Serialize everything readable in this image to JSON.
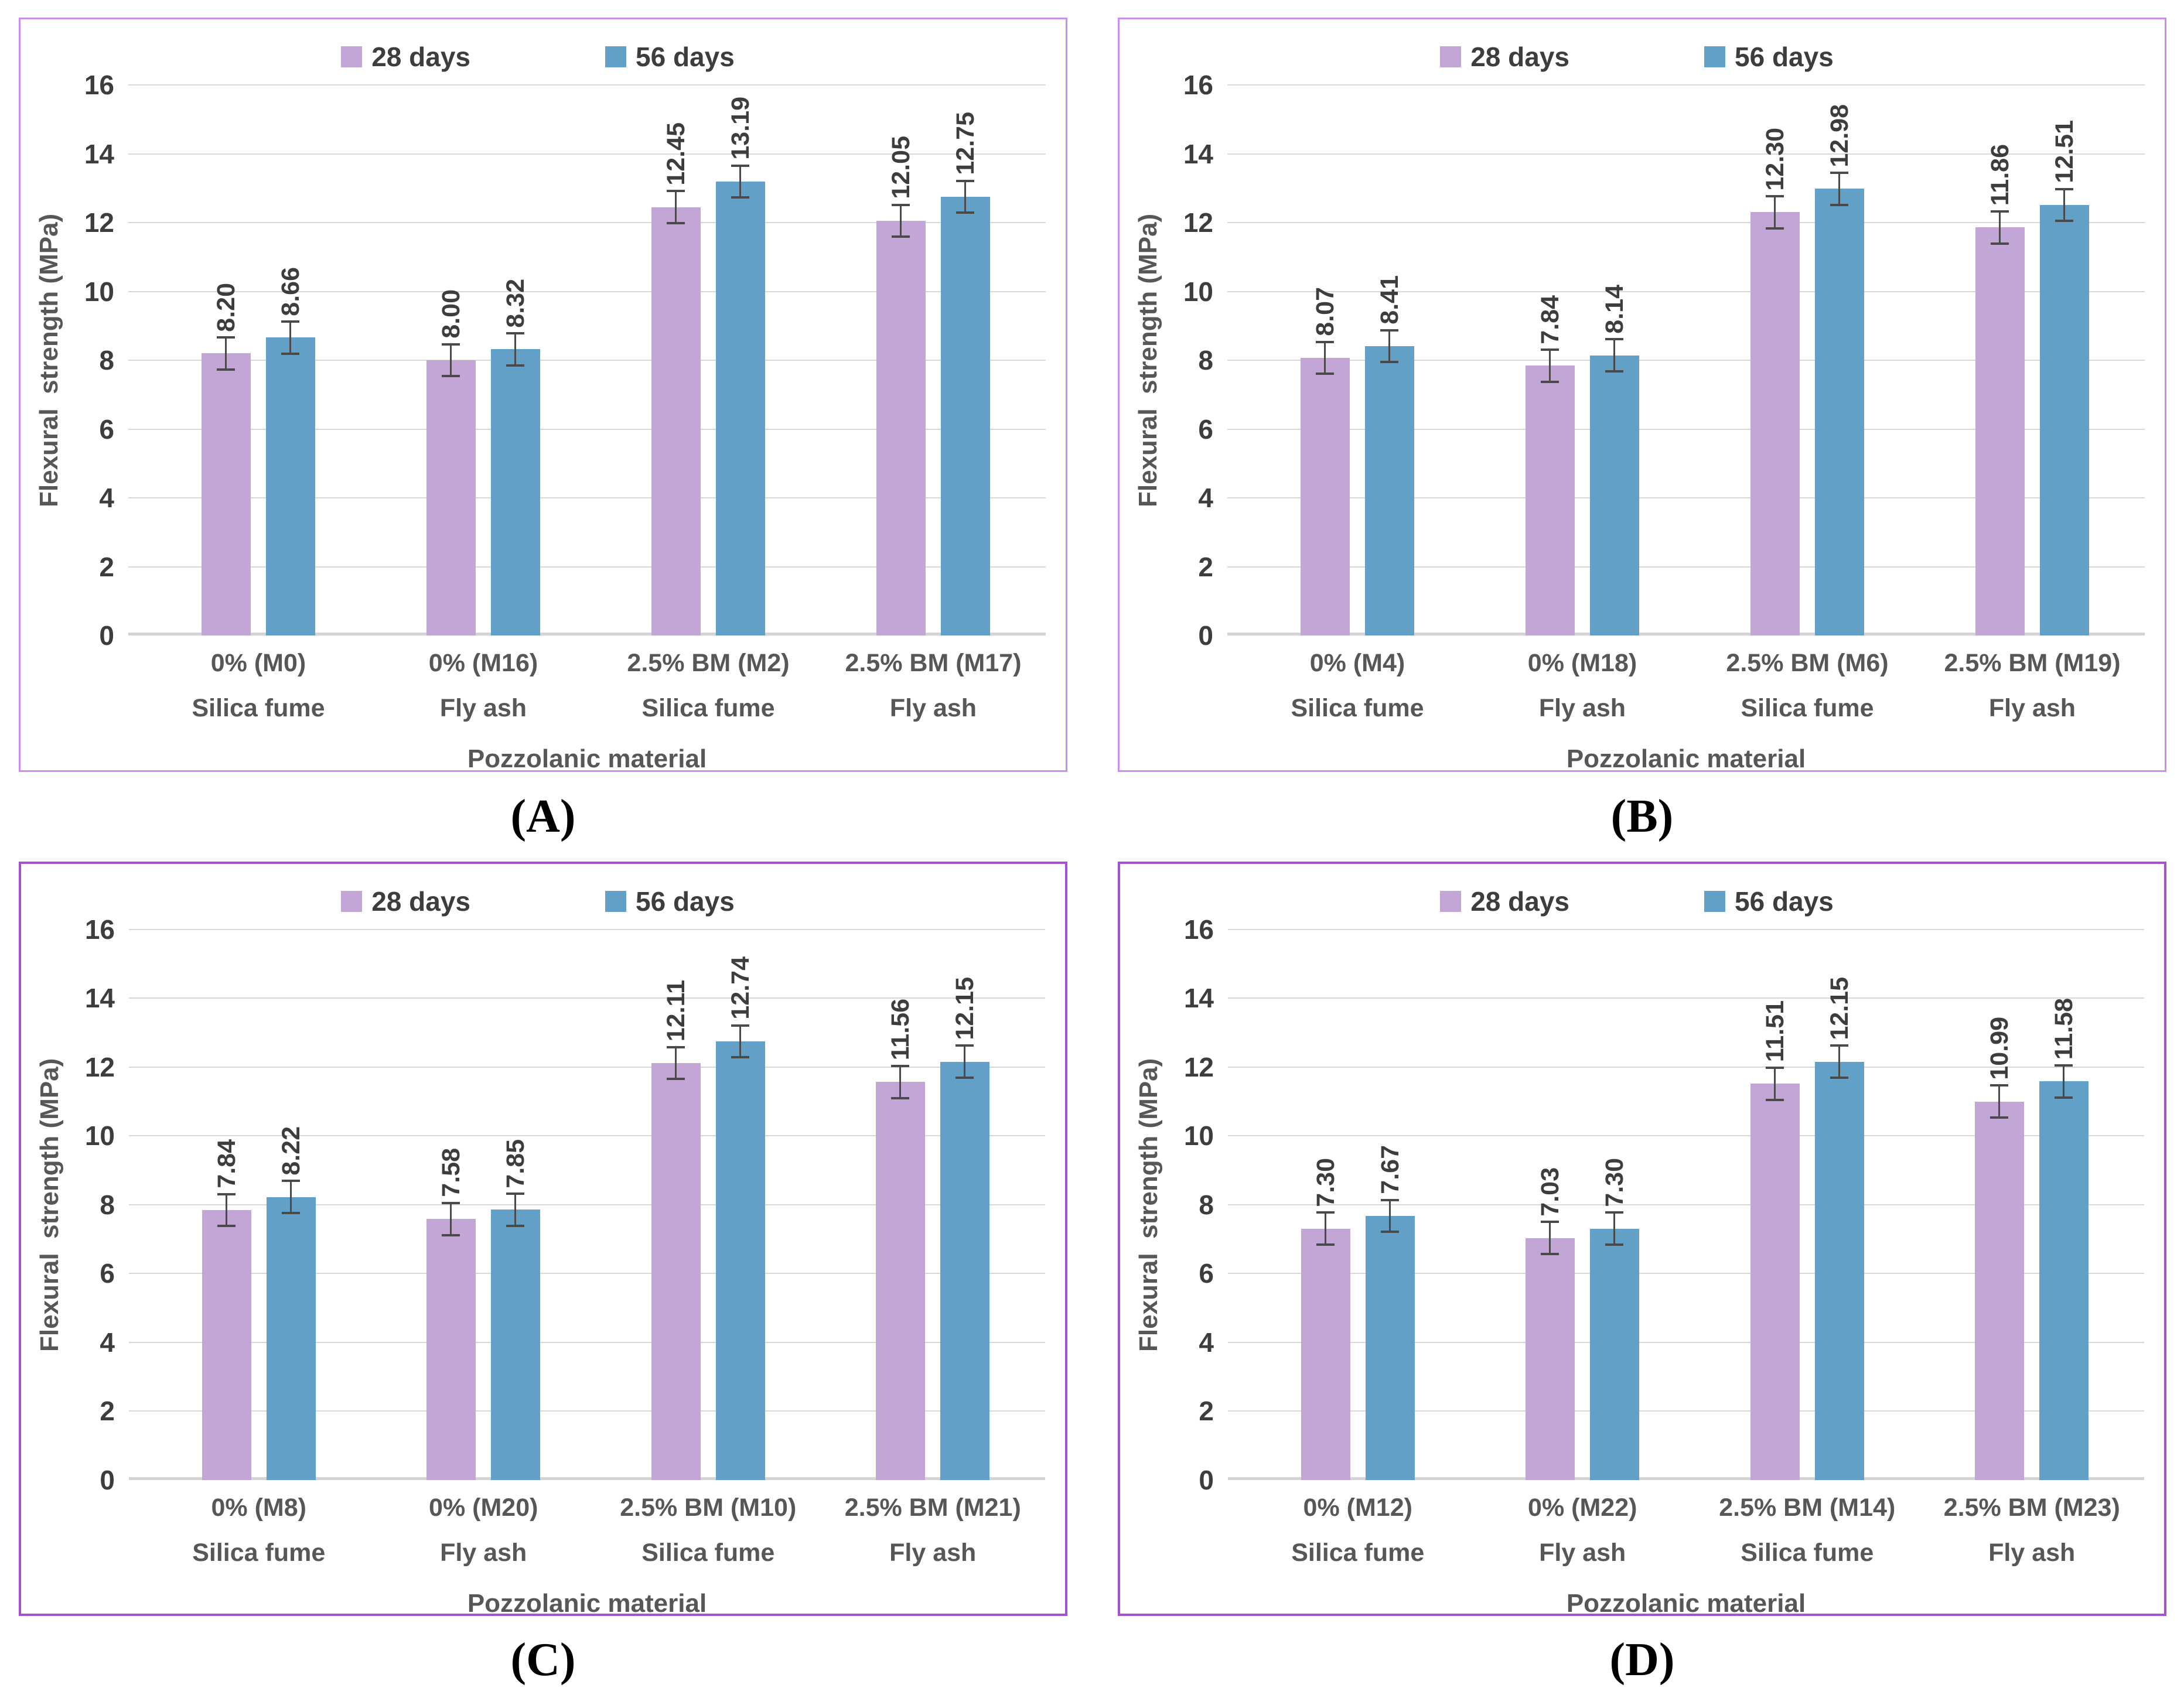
{
  "captions": [
    "(A)",
    "(B)",
    "(C)",
    "(D)"
  ],
  "legend": {
    "labels": [
      "28 days",
      "56 days"
    ]
  },
  "style": {
    "series_colors": [
      "#c2a6d6",
      "#63a0c7"
    ],
    "panel_border_rows": [
      "row1",
      "row1",
      "row2",
      "row2"
    ],
    "gridline_color": "#d8d8d8",
    "error_bar_color": "#4a4a4a"
  },
  "chart_data": [
    {
      "type": "bar",
      "title": "(A)",
      "xlabel": "Pozzolanic material",
      "ylabel": "Flexural  strength (MPa)",
      "ylim": [
        0,
        16
      ],
      "ytick_step": 2,
      "grid": true,
      "legend_position": "top",
      "error_bar": 0.5,
      "categories": [
        "0% (M0) Silica fume",
        "0% (M16) Fly ash",
        "2.5% BM (M2) Silica fume",
        "2.5% BM (M17) Fly ash"
      ],
      "categories_two_line": [
        [
          "0% (M0)",
          "Silica fume"
        ],
        [
          "0% (M16)",
          "Fly ash"
        ],
        [
          "2.5% BM (M2)",
          "Silica fume"
        ],
        [
          "2.5% BM (M17)",
          "Fly ash"
        ]
      ],
      "series": [
        {
          "name": "28 days",
          "values": [
            8.2,
            8.0,
            12.45,
            12.05
          ]
        },
        {
          "name": "56 days",
          "values": [
            8.66,
            8.32,
            13.19,
            12.75
          ]
        }
      ]
    },
    {
      "type": "bar",
      "title": "(B)",
      "xlabel": "Pozzolanic material",
      "ylabel": "Flexural  strength (MPa)",
      "ylim": [
        0,
        16
      ],
      "ytick_step": 2,
      "grid": true,
      "legend_position": "top",
      "error_bar": 0.5,
      "categories": [
        "0% (M4) Silica fume",
        "0% (M18) Fly ash",
        "2.5% BM (M6) Silica fume",
        "2.5% BM (M19) Fly ash"
      ],
      "categories_two_line": [
        [
          "0% (M4)",
          "Silica fume"
        ],
        [
          "0% (M18)",
          "Fly ash"
        ],
        [
          "2.5% BM (M6)",
          "Silica fume"
        ],
        [
          "2.5% BM (M19)",
          "Fly ash"
        ]
      ],
      "series": [
        {
          "name": "28 days",
          "values": [
            8.07,
            7.84,
            12.3,
            11.86
          ]
        },
        {
          "name": "56 days",
          "values": [
            8.41,
            8.14,
            12.98,
            12.51
          ]
        }
      ]
    },
    {
      "type": "bar",
      "title": "(C)",
      "xlabel": "Pozzolanic material",
      "ylabel": "Flexural  strength (MPa)",
      "ylim": [
        0,
        16
      ],
      "ytick_step": 2,
      "grid": true,
      "legend_position": "top",
      "error_bar": 0.5,
      "categories": [
        "0% (M8) Silica fume",
        "0% (M20) Fly ash",
        "2.5% BM (M10) Silica fume",
        "2.5% BM (M21) Fly ash"
      ],
      "categories_two_line": [
        [
          "0% (M8)",
          "Silica fume"
        ],
        [
          "0% (M20)",
          "Fly ash"
        ],
        [
          "2.5% BM (M10)",
          "Silica fume"
        ],
        [
          "2.5% BM (M21)",
          "Fly ash"
        ]
      ],
      "series": [
        {
          "name": "28 days",
          "values": [
            7.84,
            7.58,
            12.11,
            11.56
          ]
        },
        {
          "name": "56 days",
          "values": [
            8.22,
            7.85,
            12.74,
            12.15
          ]
        }
      ]
    },
    {
      "type": "bar",
      "title": "(D)",
      "xlabel": "Pozzolanic material",
      "ylabel": "Flexural  strength (MPa)",
      "ylim": [
        0,
        16
      ],
      "ytick_step": 2,
      "grid": true,
      "legend_position": "top",
      "error_bar": 0.5,
      "categories": [
        "0% (M12) Silica fume",
        "0% (M22) Fly ash",
        "2.5% BM (M14) Silica fume",
        "2.5% BM (M23) Fly ash"
      ],
      "categories_two_line": [
        [
          "0% (M12)",
          "Silica fume"
        ],
        [
          "0% (M22)",
          "Fly ash"
        ],
        [
          "2.5% BM (M14)",
          "Silica fume"
        ],
        [
          "2.5% BM (M23)",
          "Fly ash"
        ]
      ],
      "series": [
        {
          "name": "28 days",
          "values": [
            7.3,
            7.03,
            11.51,
            10.99
          ]
        },
        {
          "name": "56 days",
          "values": [
            7.67,
            7.3,
            12.15,
            11.58
          ]
        }
      ]
    }
  ]
}
